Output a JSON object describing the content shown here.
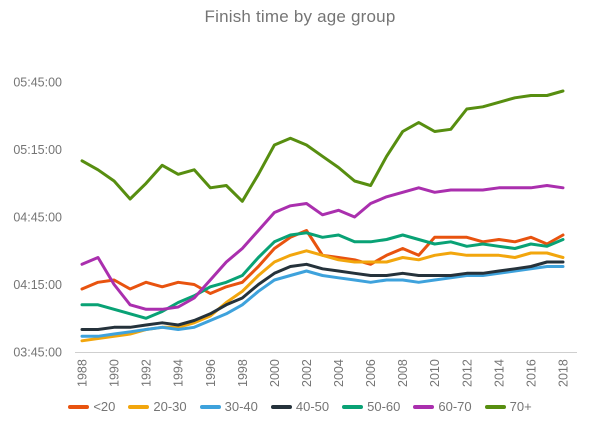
{
  "title": "Finish time by age group",
  "axis_color": "#757575",
  "baseline_color": "#cfcfcf",
  "chart_data": {
    "type": "line",
    "title": "Finish time by age group",
    "xlabel": "",
    "ylabel": "",
    "grid": "none",
    "legend_position": "bottom",
    "y_axis": {
      "min": "03:45:00",
      "max": "05:45:00",
      "tick_step_minutes": 30
    },
    "y_ticks": [
      "05:45:00",
      "05:15:00",
      "04:45:00",
      "04:15:00",
      "03:45:00"
    ],
    "x_tick_labels": [
      "1988",
      "1990",
      "1992",
      "1994",
      "1996",
      "1998",
      "2000",
      "2002",
      "2004",
      "2006",
      "2008",
      "2010",
      "2012",
      "2014",
      "2016",
      "2018"
    ],
    "x_years": [
      1988,
      1989,
      1990,
      1991,
      1992,
      1993,
      1994,
      1995,
      1996,
      1997,
      1998,
      1999,
      2000,
      2001,
      2002,
      2003,
      2004,
      2005,
      2006,
      2007,
      2008,
      2009,
      2010,
      2011,
      2012,
      2013,
      2014,
      2015,
      2016,
      2017,
      2018
    ],
    "series": [
      {
        "name": "<20",
        "color": "#e8530f",
        "values": [
          "4:13",
          "4:16",
          "4:17",
          "4:13",
          "4:16",
          "4:14",
          "4:16",
          "4:15",
          "4:11",
          "4:14",
          "4:16",
          "4:23",
          "4:31",
          "4:36",
          "4:39",
          "4:28",
          "4:27",
          "4:26",
          "4:24",
          "4:28",
          "4:31",
          "4:28",
          "4:36",
          "4:36",
          "4:36",
          "4:34",
          "4:35",
          "4:34",
          "4:36",
          "4:33",
          "4:37"
        ]
      },
      {
        "name": "20-30",
        "color": "#f2a60d",
        "values": [
          "3:50",
          "3:51",
          "3:52",
          "3:53",
          "3:55",
          "3:56",
          "3:56",
          "3:58",
          "4:01",
          "4:07",
          "4:12",
          "4:19",
          "4:25",
          "4:28",
          "4:30",
          "4:28",
          "4:26",
          "4:25",
          "4:25",
          "4:25",
          "4:27",
          "4:26",
          "4:28",
          "4:29",
          "4:28",
          "4:28",
          "4:28",
          "4:27",
          "4:29",
          "4:29",
          "4:27"
        ]
      },
      {
        "name": "30-40",
        "color": "#3ea2dc",
        "values": [
          "3:52",
          "3:52",
          "3:53",
          "3:54",
          "3:55",
          "3:56",
          "3:55",
          "3:56",
          "3:59",
          "4:02",
          "4:06",
          "4:12",
          "4:17",
          "4:19",
          "4:21",
          "4:19",
          "4:18",
          "4:17",
          "4:16",
          "4:17",
          "4:17",
          "4:16",
          "4:17",
          "4:18",
          "4:19",
          "4:19",
          "4:20",
          "4:21",
          "4:22",
          "4:23",
          "4:23"
        ]
      },
      {
        "name": "40-50",
        "color": "#25323b",
        "values": [
          "3:55",
          "3:55",
          "3:56",
          "3:56",
          "3:57",
          "3:58",
          "3:57",
          "3:59",
          "4:02",
          "4:06",
          "4:09",
          "4:15",
          "4:20",
          "4:23",
          "4:24",
          "4:22",
          "4:21",
          "4:20",
          "4:19",
          "4:19",
          "4:20",
          "4:19",
          "4:19",
          "4:19",
          "4:20",
          "4:20",
          "4:21",
          "4:22",
          "4:23",
          "4:25",
          "4:25"
        ]
      },
      {
        "name": "50-60",
        "color": "#09a275",
        "values": [
          "4:06",
          "4:06",
          "4:04",
          "4:02",
          "4:00",
          "4:03",
          "4:07",
          "4:10",
          "4:14",
          "4:16",
          "4:19",
          "4:27",
          "4:34",
          "4:37",
          "4:38",
          "4:36",
          "4:37",
          "4:34",
          "4:34",
          "4:35",
          "4:37",
          "4:35",
          "4:33",
          "4:34",
          "4:32",
          "4:33",
          "4:32",
          "4:31",
          "4:33",
          "4:32",
          "4:35"
        ]
      },
      {
        "name": "60-70",
        "color": "#aa2fae",
        "values": [
          "4:24",
          "4:27",
          "4:15",
          "4:06",
          "4:04",
          "4:04",
          "4:05",
          "4:09",
          "4:17",
          "4:25",
          "4:31",
          "4:39",
          "4:47",
          "4:50",
          "4:51",
          "4:46",
          "4:48",
          "4:45",
          "4:51",
          "4:54",
          "4:56",
          "4:58",
          "4:56",
          "4:57",
          "4:57",
          "4:57",
          "4:58",
          "4:58",
          "4:58",
          "4:59",
          "4:58"
        ]
      },
      {
        "name": "70+",
        "color": "#578e10",
        "values": [
          "5:10",
          "5:06",
          "5:01",
          "4:53",
          "5:00",
          "5:08",
          "5:04",
          "5:06",
          "4:58",
          "4:59",
          "4:52",
          "5:04",
          "5:17",
          "5:20",
          "5:17",
          "5:12",
          "5:07",
          "5:01",
          "4:59",
          "5:12",
          "5:23",
          "5:27",
          "5:23",
          "5:24",
          "5:33",
          "5:34",
          "5:36",
          "5:38",
          "5:39",
          "5:39",
          "5:41"
        ]
      }
    ]
  }
}
